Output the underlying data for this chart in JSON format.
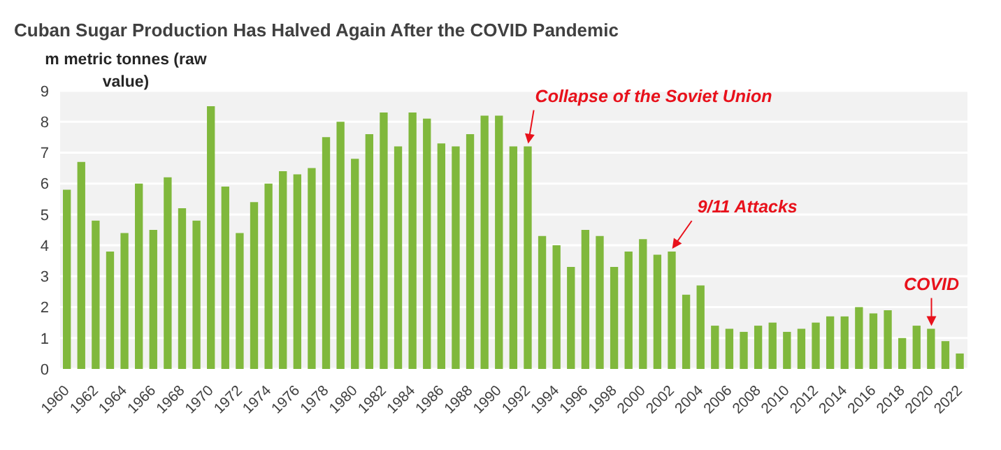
{
  "chart_data": {
    "type": "bar",
    "title": "Cuban Sugar Production Has Halved Again After the COVID Pandemic",
    "ylabel": "m metric tonnes (raw value)",
    "categories": [
      "1960",
      null,
      "1962",
      null,
      "1964",
      null,
      "1966",
      null,
      "1968",
      null,
      "1970",
      null,
      "1972",
      null,
      "1974",
      null,
      "1976",
      null,
      "1978",
      null,
      "1980",
      null,
      "1982",
      null,
      "1984",
      null,
      "1986",
      null,
      "1988",
      null,
      "1990",
      null,
      "1992",
      null,
      "1994",
      null,
      "1996",
      null,
      "1998",
      null,
      "2000",
      null,
      "2002",
      null,
      "2004",
      null,
      "2006",
      null,
      "2008",
      null,
      "2010",
      null,
      "2012",
      null,
      "2014",
      null,
      "2016",
      null,
      "2018",
      null,
      "2020",
      null,
      "2022"
    ],
    "values": [
      5.8,
      6.7,
      4.8,
      3.8,
      4.4,
      6.0,
      4.5,
      6.2,
      5.2,
      4.8,
      8.5,
      5.9,
      4.4,
      5.4,
      6.0,
      6.4,
      6.3,
      6.5,
      7.5,
      8.0,
      6.8,
      7.6,
      8.3,
      7.2,
      8.3,
      8.1,
      7.3,
      7.2,
      7.6,
      8.2,
      8.2,
      7.2,
      7.2,
      4.3,
      4.0,
      3.3,
      4.5,
      4.3,
      3.3,
      3.8,
      4.2,
      3.7,
      3.8,
      2.4,
      2.7,
      1.4,
      1.3,
      1.2,
      1.4,
      1.5,
      1.2,
      1.3,
      1.5,
      1.7,
      1.7,
      2.0,
      1.8,
      1.9,
      1.0,
      1.4,
      1.3,
      0.9,
      0.5
    ],
    "color": "#80b83c",
    "ylim": [
      0,
      9
    ],
    "yticks": [
      0,
      1,
      2,
      3,
      4,
      5,
      6,
      7,
      8,
      9
    ],
    "grid": "y",
    "annotations": [
      {
        "text": "Collapse of the Soviet Union",
        "x": "1992",
        "y": 7.2
      },
      {
        "text": "9/11 Attacks",
        "x": "2002",
        "y": 3.8
      },
      {
        "text": "COVID",
        "x": "2020",
        "y": 1.3
      }
    ]
  }
}
